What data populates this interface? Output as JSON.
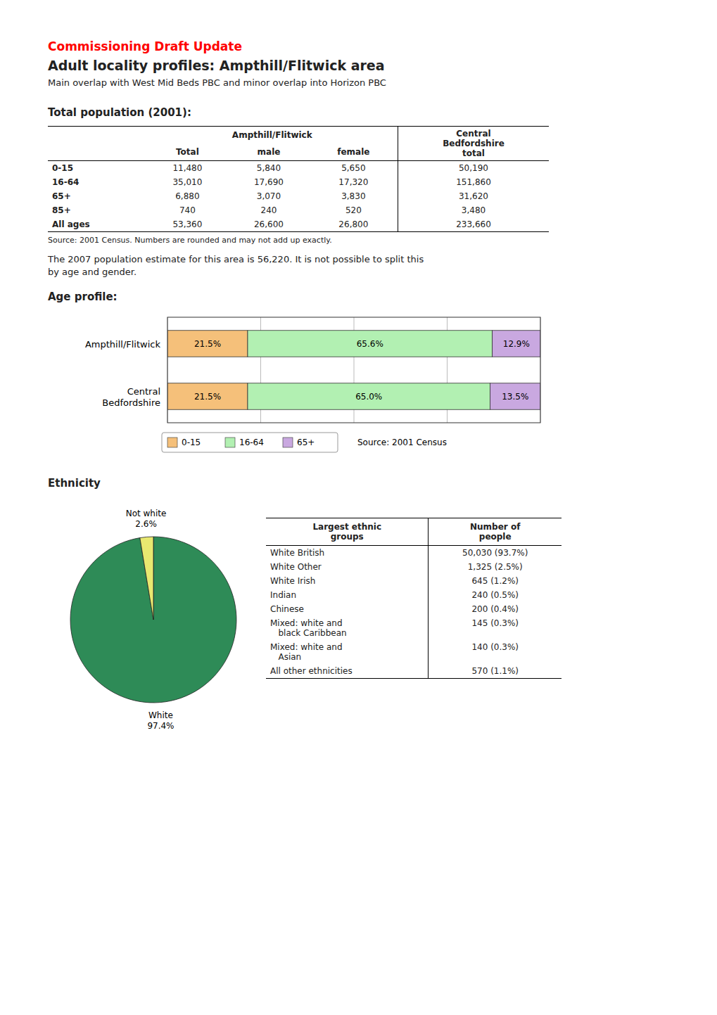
{
  "header": {
    "kicker": "Commissioning Draft Update",
    "color": "#ff0000",
    "title": "Adult locality profiles: Ampthill/Flitwick area",
    "subtitle": "Main overlap with West Mid Beds PBC and minor overlap into Horizon PBC"
  },
  "population": {
    "title": "Total population (2001):",
    "group_header": "Ampthill/Flitwick",
    "total_header": "Central\nBedfordshire\ntotal",
    "columns": [
      "Total",
      "male",
      "female"
    ],
    "rows": [
      [
        "0-15",
        "11,480",
        "5,840",
        "5,650",
        "50,190"
      ],
      [
        "16-64",
        "35,010",
        "17,690",
        "17,320",
        "151,860"
      ],
      [
        "65+",
        "6,880",
        "3,070",
        "3,830",
        "31,620"
      ],
      [
        "85+",
        "740",
        "240",
        "520",
        "3,480"
      ],
      [
        "All ages",
        "53,360",
        "26,600",
        "26,800",
        "233,660"
      ]
    ],
    "source": "Source: 2001 Census. Numbers are rounded and may not add up exactly.",
    "note": "The 2007 population estimate for this area is 56,220. It is not possible to split this\nby age and gender."
  },
  "chart_data": [
    {
      "type": "bar",
      "orientation": "horizontal",
      "stacked": true,
      "title": "Age profile:",
      "categories": [
        "Ampthill/Flitwick",
        "Central\nBedfordshire"
      ],
      "series": [
        {
          "name": "0-15",
          "color": "#f5c07a",
          "values": [
            21.5,
            21.5
          ],
          "value_labels": [
            "21.5%",
            "21.5%"
          ]
        },
        {
          "name": "16-64",
          "color": "#b2f0b2",
          "values": [
            65.6,
            65.0
          ],
          "value_labels": [
            "65.6%",
            "65.0%"
          ]
        },
        {
          "name": "65+",
          "color": "#c9a8e0",
          "values": [
            12.9,
            13.5
          ],
          "value_labels": [
            "12.9%",
            "13.5%"
          ]
        }
      ],
      "xlim": [
        0,
        100
      ],
      "xticks": [
        0,
        25,
        50,
        75,
        100
      ],
      "grid": true,
      "tick_labels": false,
      "data_labels": true,
      "legend": "bottom",
      "annotations": [
        "Source: 2001 Census"
      ]
    },
    {
      "type": "pie",
      "title": "Ethnicity",
      "categories": [
        "White",
        "Not white"
      ],
      "values": [
        97.4,
        2.6
      ],
      "value_labels": [
        "97.4%",
        "2.6%"
      ],
      "colors": [
        "#2e8b57",
        "#e8e870"
      ],
      "data_labels": true
    }
  ],
  "ethnicity_table": {
    "headers": [
      "Largest ethnic\ngroups",
      "Number of\npeople"
    ],
    "rows": [
      [
        "White British",
        "50,030 (93.7%)"
      ],
      [
        "White Other",
        "1,325 (2.5%)"
      ],
      [
        "White Irish",
        "645 (1.2%)"
      ],
      [
        "Indian",
        "240 (0.5%)"
      ],
      [
        "Chinese",
        "200 (0.4%)"
      ],
      [
        "Mixed: white and\n   black Caribbean",
        "145 (0.3%)"
      ],
      [
        "Mixed: white and\n   Asian",
        "140 (0.3%)"
      ],
      [
        "All other ethnicities",
        "570 (1.1%)"
      ]
    ]
  }
}
